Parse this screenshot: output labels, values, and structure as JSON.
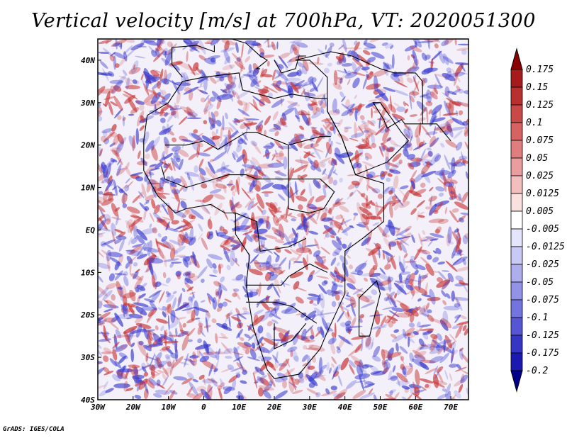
{
  "title": "Vertical velocity [m/s] at 700hPa, VT: 2020051300",
  "credit": "GrADS: IGES/COLA",
  "map": {
    "lon_ticks": [
      "30W",
      "20W",
      "10W",
      "0",
      "10E",
      "20E",
      "30E",
      "40E",
      "50E",
      "60E",
      "70E"
    ],
    "lat_ticks": [
      "40N",
      "30N",
      "20N",
      "10N",
      "EQ",
      "10S",
      "20S",
      "30S",
      "40S"
    ],
    "lon_range": [
      -30,
      75
    ],
    "lat_range": [
      -40,
      45
    ]
  },
  "colorbar": {
    "labels": [
      "0.175",
      "0.15",
      "0.125",
      "0.1",
      "0.075",
      "0.05",
      "0.025",
      "0.0125",
      "0.005",
      "-0.005",
      "-0.0125",
      "-0.025",
      "-0.05",
      "-0.075",
      "-0.1",
      "-0.125",
      "-0.175",
      "-0.2"
    ],
    "colors": [
      "#8b0000",
      "#a61b1b",
      "#b93030",
      "#c94848",
      "#d66262",
      "#e07e7e",
      "#ea9d9d",
      "#f3bebe",
      "#fbe0e0",
      "#ffffff",
      "#e4e4fb",
      "#c9c9f5",
      "#aeaeef",
      "#9292e7",
      "#7474de",
      "#5656d4",
      "#3636c4",
      "#1a1ab0",
      "#00008b"
    ]
  },
  "palette": {
    "up": "#c83232",
    "down": "#3c3ccf",
    "background": "#f3f0fa",
    "border": "#000000"
  }
}
